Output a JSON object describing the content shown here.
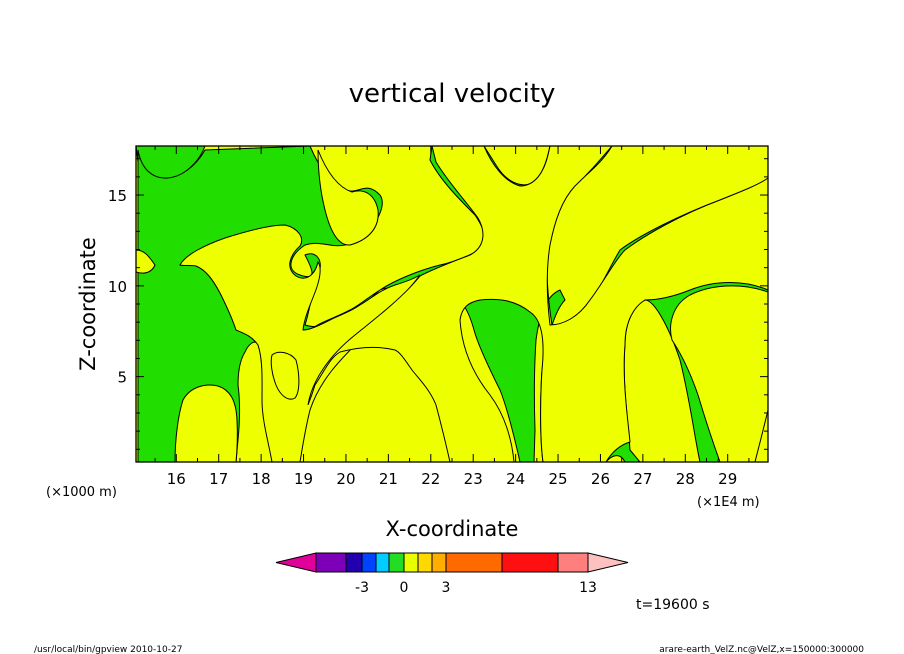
{
  "chart_data": {
    "type": "heatmap",
    "title": "vertical velocity",
    "xlabel": "X-coordinate",
    "ylabel": "Z-coordinate",
    "x_unit_left": "(×1000 m)",
    "x_unit_right": "(×1E4 m)",
    "x_ticks": [
      16,
      17,
      18,
      19,
      20,
      21,
      22,
      23,
      24,
      25,
      26,
      27,
      28,
      29
    ],
    "y_ticks": [
      5,
      10,
      15
    ],
    "xlim": [
      15.05,
      29.95
    ],
    "ylim": [
      0.3,
      17.7
    ],
    "colorbar": {
      "tick_labels": [
        "-3",
        "0",
        "3",
        "13"
      ],
      "colors": [
        "#e0009a",
        "#7d00b8",
        "#2200b0",
        "#0043ff",
        "#00ccff",
        "#22dd22",
        "#e8ff00",
        "#ffd800",
        "#ffae00",
        "#ff6a00",
        "#ff1010",
        "#ff7e7e",
        "#ffc0c0"
      ]
    },
    "regions_colors": {
      "positive_weak": "#eeff00",
      "negative_weak": "#22dd00"
    },
    "time_label": "t=19600 s"
  },
  "footer": {
    "left": "/usr/local/bin/gpview   2010-10-27",
    "right": "arare-earth_VelZ.nc@VelZ,x=150000:300000"
  }
}
